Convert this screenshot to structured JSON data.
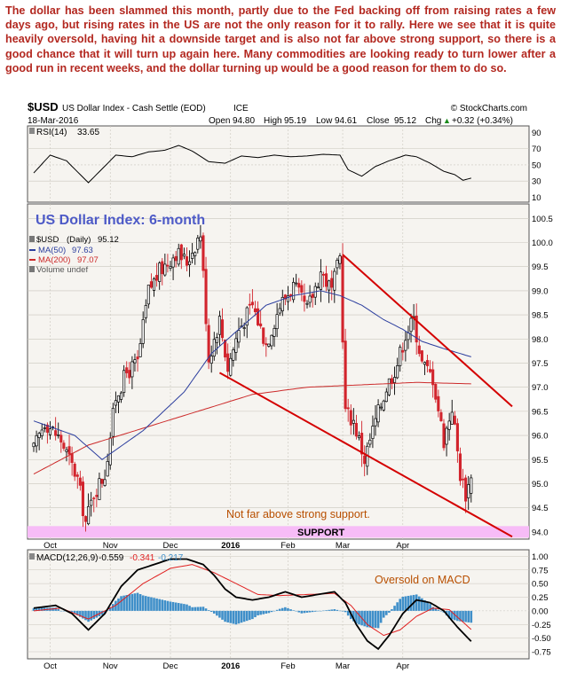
{
  "commentary": "The dollar has been slammed this month, partly due to the Fed backing off from raising rates a few days ago, but rising rates in the US are not the only reason for it to rally. Here we see that it is quite heavily oversold, having hit a downside target and is also not far above strong support, so there is a good chance that it will turn up again here. Many commodities are looking ready to turn lower after a good run in recent weeks, and the dollar turning up would be a good reason for them to do so.",
  "header": {
    "symbol": "$USD",
    "name": "US Dollar Index - Cash Settle (EOD)",
    "exchange": "ICE",
    "source": "© StockCharts.com",
    "date": "18-Mar-2016",
    "open_label": "Open",
    "open": "94.80",
    "high_label": "High",
    "high": "95.19",
    "low_label": "Low",
    "low": "94.61",
    "close_label": "Close",
    "close": "95.12",
    "chg_label": "Chg",
    "chg": "+0.32 (+0.34%)",
    "chg_arrow": "▲"
  },
  "colors": {
    "price": "#000000",
    "up": "#000000",
    "down": "#d2242d",
    "ma50": "#2c3e9e",
    "ma200": "#cc2a2a",
    "trendline": "#d40000",
    "support_band": "#f7bcf7",
    "panel_bg": "#f6f4f0",
    "annotation": "#b84f00",
    "title_blue": "#4d5ac7",
    "macd_hist": "#3f8fc9"
  },
  "rsi": {
    "label": "RSI(14)",
    "value": "33.65",
    "ticks": [
      "90",
      "70",
      "50",
      "30",
      "10"
    ]
  },
  "price_panel": {
    "title": "US Dollar Index: 6-month",
    "legend_price_sym": "$USD",
    "legend_price_desc": "(Daily)",
    "legend_price_val": "95.12",
    "legend_ma50": "MA(50)",
    "legend_ma50_val": "97.63",
    "legend_ma200": "MA(200)",
    "legend_ma200_val": "97.07",
    "legend_volume": "Volume undef",
    "support_note": "Not far above strong support.",
    "support_label": "SUPPORT",
    "ticks": [
      "100.5",
      "100.0",
      "99.5",
      "99.0",
      "98.5",
      "98.0",
      "97.5",
      "97.0",
      "96.5",
      "96.0",
      "95.5",
      "95.0",
      "94.5",
      "94.0"
    ],
    "xticks": [
      "Oct",
      "Nov",
      "Dec",
      "2016",
      "Feb",
      "Mar",
      "Apr"
    ]
  },
  "macd": {
    "label": "MACD(12,26,9)",
    "v1": "-0.559",
    "v2": "-0.341",
    "v3": "-0.217",
    "note": "Oversold on MACD",
    "ticks": [
      "1.00",
      "0.75",
      "0.50",
      "0.25",
      "0.00",
      "-0.25",
      "-0.50",
      "-0.75"
    ],
    "xticks": [
      "Oct",
      "Nov",
      "Dec",
      "2016",
      "Feb",
      "Mar",
      "Apr"
    ]
  },
  "chart_data": {
    "type": "candlestick",
    "title": "US Dollar Index: 6-month",
    "ylim": [
      93.85,
      100.8
    ],
    "support_level": 94.0,
    "x_months": [
      "Oct",
      "Nov",
      "Dec",
      "2016",
      "Feb",
      "Mar",
      "Apr"
    ],
    "close_anchors": [
      [
        0,
        95.7
      ],
      [
        4,
        96.3
      ],
      [
        10,
        95.9
      ],
      [
        16,
        95.1
      ],
      [
        19,
        94.2
      ],
      [
        22,
        94.8
      ],
      [
        26,
        95.2
      ],
      [
        30,
        96.8
      ],
      [
        34,
        97.3
      ],
      [
        38,
        97.5
      ],
      [
        42,
        99.0
      ],
      [
        46,
        99.4
      ],
      [
        52,
        99.8
      ],
      [
        56,
        99.6
      ],
      [
        61,
        100.2
      ],
      [
        64,
        97.6
      ],
      [
        68,
        98.4
      ],
      [
        71,
        97.4
      ],
      [
        75,
        98.2
      ],
      [
        80,
        98.7
      ],
      [
        85,
        97.9
      ],
      [
        90,
        98.7
      ],
      [
        95,
        99.1
      ],
      [
        100,
        98.6
      ],
      [
        105,
        99.4
      ],
      [
        109,
        99.0
      ],
      [
        112,
        99.7
      ],
      [
        114,
        96.5
      ],
      [
        117,
        96.3
      ],
      [
        121,
        95.5
      ],
      [
        125,
        96.3
      ],
      [
        129,
        97.0
      ],
      [
        133,
        97.5
      ],
      [
        136,
        98.1
      ],
      [
        139,
        98.4
      ],
      [
        142,
        97.5
      ],
      [
        146,
        97.2
      ],
      [
        150,
        95.9
      ],
      [
        153,
        96.6
      ],
      [
        156,
        95.2
      ],
      [
        158,
        94.8
      ],
      [
        160,
        95.1
      ]
    ],
    "ma50_anchors": [
      [
        0,
        96.3
      ],
      [
        15,
        96.0
      ],
      [
        25,
        95.5
      ],
      [
        40,
        96.1
      ],
      [
        55,
        96.9
      ],
      [
        65,
        97.7
      ],
      [
        75,
        98.2
      ],
      [
        85,
        98.7
      ],
      [
        95,
        98.9
      ],
      [
        105,
        99.0
      ],
      [
        112,
        98.9
      ],
      [
        120,
        98.7
      ],
      [
        128,
        98.4
      ],
      [
        135,
        98.2
      ],
      [
        142,
        97.95
      ],
      [
        150,
        97.8
      ],
      [
        160,
        97.63
      ]
    ],
    "ma200_anchors": [
      [
        0,
        95.2
      ],
      [
        20,
        95.8
      ],
      [
        40,
        96.15
      ],
      [
        60,
        96.5
      ],
      [
        80,
        96.85
      ],
      [
        100,
        97.0
      ],
      [
        120,
        97.05
      ],
      [
        140,
        97.1
      ],
      [
        160,
        97.07
      ]
    ],
    "upper_trendline": [
      [
        113,
        99.75
      ],
      [
        175,
        96.6
      ]
    ],
    "lower_trendline": [
      [
        68,
        97.3
      ],
      [
        175,
        93.9
      ]
    ],
    "rsi_anchors": [
      [
        0,
        40
      ],
      [
        6,
        62
      ],
      [
        12,
        55
      ],
      [
        17,
        38
      ],
      [
        20,
        28
      ],
      [
        25,
        45
      ],
      [
        30,
        62
      ],
      [
        36,
        60
      ],
      [
        42,
        66
      ],
      [
        48,
        68
      ],
      [
        53,
        74
      ],
      [
        58,
        67
      ],
      [
        64,
        54
      ],
      [
        70,
        52
      ],
      [
        76,
        61
      ],
      [
        82,
        59
      ],
      [
        88,
        62
      ],
      [
        94,
        60
      ],
      [
        100,
        61
      ],
      [
        106,
        63
      ],
      [
        112,
        62
      ],
      [
        115,
        44
      ],
      [
        120,
        36
      ],
      [
        125,
        48
      ],
      [
        130,
        55
      ],
      [
        136,
        62
      ],
      [
        140,
        60
      ],
      [
        145,
        52
      ],
      [
        150,
        42
      ],
      [
        154,
        38
      ],
      [
        157,
        31
      ],
      [
        160,
        33.65
      ]
    ],
    "macd_anchors": [
      [
        0,
        0.05
      ],
      [
        8,
        0.1
      ],
      [
        14,
        -0.05
      ],
      [
        20,
        -0.35
      ],
      [
        26,
        -0.05
      ],
      [
        32,
        0.45
      ],
      [
        38,
        0.75
      ],
      [
        44,
        0.85
      ],
      [
        50,
        0.95
      ],
      [
        56,
        0.95
      ],
      [
        62,
        0.85
      ],
      [
        66,
        0.65
      ],
      [
        70,
        0.4
      ],
      [
        74,
        0.25
      ],
      [
        80,
        0.2
      ],
      [
        86,
        0.25
      ],
      [
        92,
        0.35
      ],
      [
        98,
        0.25
      ],
      [
        104,
        0.3
      ],
      [
        110,
        0.35
      ],
      [
        114,
        0.15
      ],
      [
        118,
        -0.25
      ],
      [
        122,
        -0.55
      ],
      [
        126,
        -0.7
      ],
      [
        130,
        -0.45
      ],
      [
        135,
        -0.05
      ],
      [
        140,
        0.2
      ],
      [
        145,
        0.15
      ],
      [
        150,
        0.0
      ],
      [
        155,
        -0.3
      ],
      [
        160,
        -0.559
      ]
    ],
    "signal_anchors": [
      [
        0,
        0.0
      ],
      [
        10,
        0.05
      ],
      [
        20,
        -0.15
      ],
      [
        30,
        0.1
      ],
      [
        40,
        0.5
      ],
      [
        50,
        0.78
      ],
      [
        58,
        0.85
      ],
      [
        66,
        0.7
      ],
      [
        74,
        0.5
      ],
      [
        82,
        0.3
      ],
      [
        90,
        0.28
      ],
      [
        100,
        0.3
      ],
      [
        110,
        0.32
      ],
      [
        116,
        0.1
      ],
      [
        122,
        -0.25
      ],
      [
        128,
        -0.45
      ],
      [
        134,
        -0.35
      ],
      [
        140,
        -0.1
      ],
      [
        146,
        0.05
      ],
      [
        152,
        0.02
      ],
      [
        158,
        -0.25
      ],
      [
        160,
        -0.341
      ]
    ],
    "last_values": {
      "open": 94.8,
      "high": 95.19,
      "low": 94.61,
      "close": 95.12,
      "ma50": 97.63,
      "ma200": 97.07,
      "rsi": 33.65,
      "macd": -0.559,
      "signal": -0.341,
      "hist": -0.217
    }
  }
}
